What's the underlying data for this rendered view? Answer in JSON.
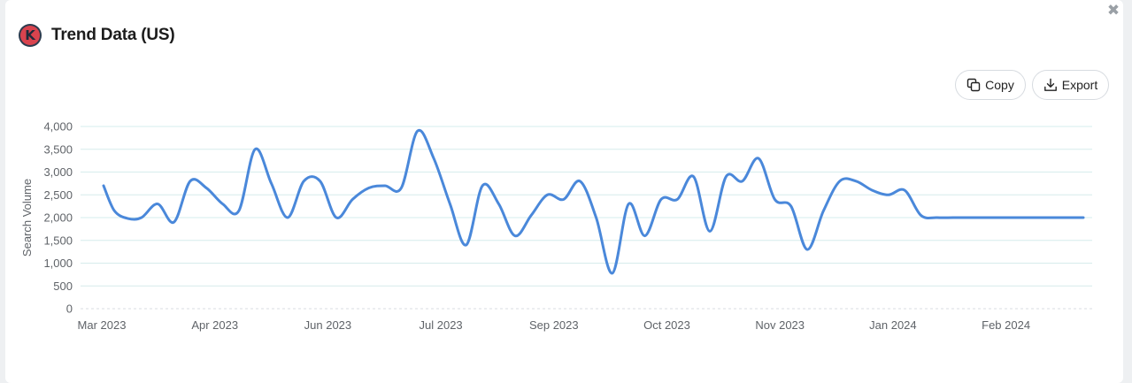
{
  "window": {
    "title": "Trend Data (US)",
    "logo_letter": "K",
    "close_icon": "close-icon"
  },
  "toolbar": {
    "copy_label": "Copy",
    "export_label": "Export"
  },
  "colors": {
    "line": "#4a88da",
    "grid": "#d6ecec",
    "logo_bg": "#2d3b4e",
    "logo_accent": "#d9434e"
  },
  "chart_data": {
    "type": "line",
    "title": "",
    "xlabel": "",
    "ylabel": "Search Volume",
    "ylim": [
      0,
      4000
    ],
    "yticks": [
      0,
      500,
      1000,
      1500,
      2000,
      2500,
      3000,
      3500,
      4000
    ],
    "ytick_labels": [
      "0",
      "500",
      "1,000",
      "1,500",
      "2,000",
      "2,500",
      "3,000",
      "3,500",
      "4,000"
    ],
    "xtick_labels": [
      "Mar 2023",
      "Apr 2023",
      "Jun 2023",
      "Jul 2023",
      "Sep 2023",
      "Oct 2023",
      "Nov 2023",
      "Jan 2024",
      "Feb 2024"
    ],
    "grid": true,
    "series": [
      {
        "x": [
          "2023-03-01",
          "2023-03-05",
          "2023-03-10",
          "2023-03-15",
          "2023-03-21",
          "2023-03-27",
          "2023-04-02",
          "2023-04-08",
          "2023-04-14",
          "2023-04-20",
          "2023-04-26",
          "2023-05-02",
          "2023-05-08",
          "2023-05-14",
          "2023-05-20",
          "2023-05-26",
          "2023-06-01",
          "2023-06-07",
          "2023-06-13",
          "2023-06-19",
          "2023-06-25",
          "2023-07-01",
          "2023-07-07",
          "2023-07-13",
          "2023-07-19",
          "2023-07-25",
          "2023-07-31",
          "2023-08-06",
          "2023-08-12",
          "2023-08-18",
          "2023-08-24",
          "2023-08-30",
          "2023-09-05",
          "2023-09-11",
          "2023-09-17",
          "2023-09-23",
          "2023-09-29",
          "2023-10-05",
          "2023-10-11",
          "2023-10-17",
          "2023-10-23",
          "2023-10-29",
          "2023-11-04",
          "2023-11-10",
          "2023-11-16",
          "2023-11-22",
          "2023-11-28",
          "2023-12-04",
          "2023-12-10",
          "2023-12-16",
          "2023-12-22",
          "2023-12-28",
          "2024-01-03",
          "2024-01-09",
          "2024-01-15",
          "2024-01-21",
          "2024-01-27",
          "2024-02-02",
          "2024-02-08",
          "2024-02-14",
          "2024-02-20",
          "2024-02-26"
        ],
        "values": [
          2700,
          2150,
          1980,
          2000,
          2300,
          1900,
          2800,
          2650,
          2300,
          2150,
          3500,
          2750,
          2000,
          2800,
          2800,
          2000,
          2400,
          2650,
          2700,
          2650,
          3900,
          3300,
          2300,
          1400,
          2700,
          2300,
          1600,
          2050,
          2500,
          2400,
          2800,
          2000,
          780,
          2300,
          1600,
          2400,
          2400,
          2900,
          1700,
          2900,
          2800,
          3300,
          2400,
          2250,
          1300,
          2150,
          2800,
          2800,
          2600,
          2500,
          2600,
          2050,
          2000,
          2000,
          2000,
          2000,
          2000,
          2000,
          2000,
          2000,
          2000,
          2000
        ]
      }
    ]
  }
}
